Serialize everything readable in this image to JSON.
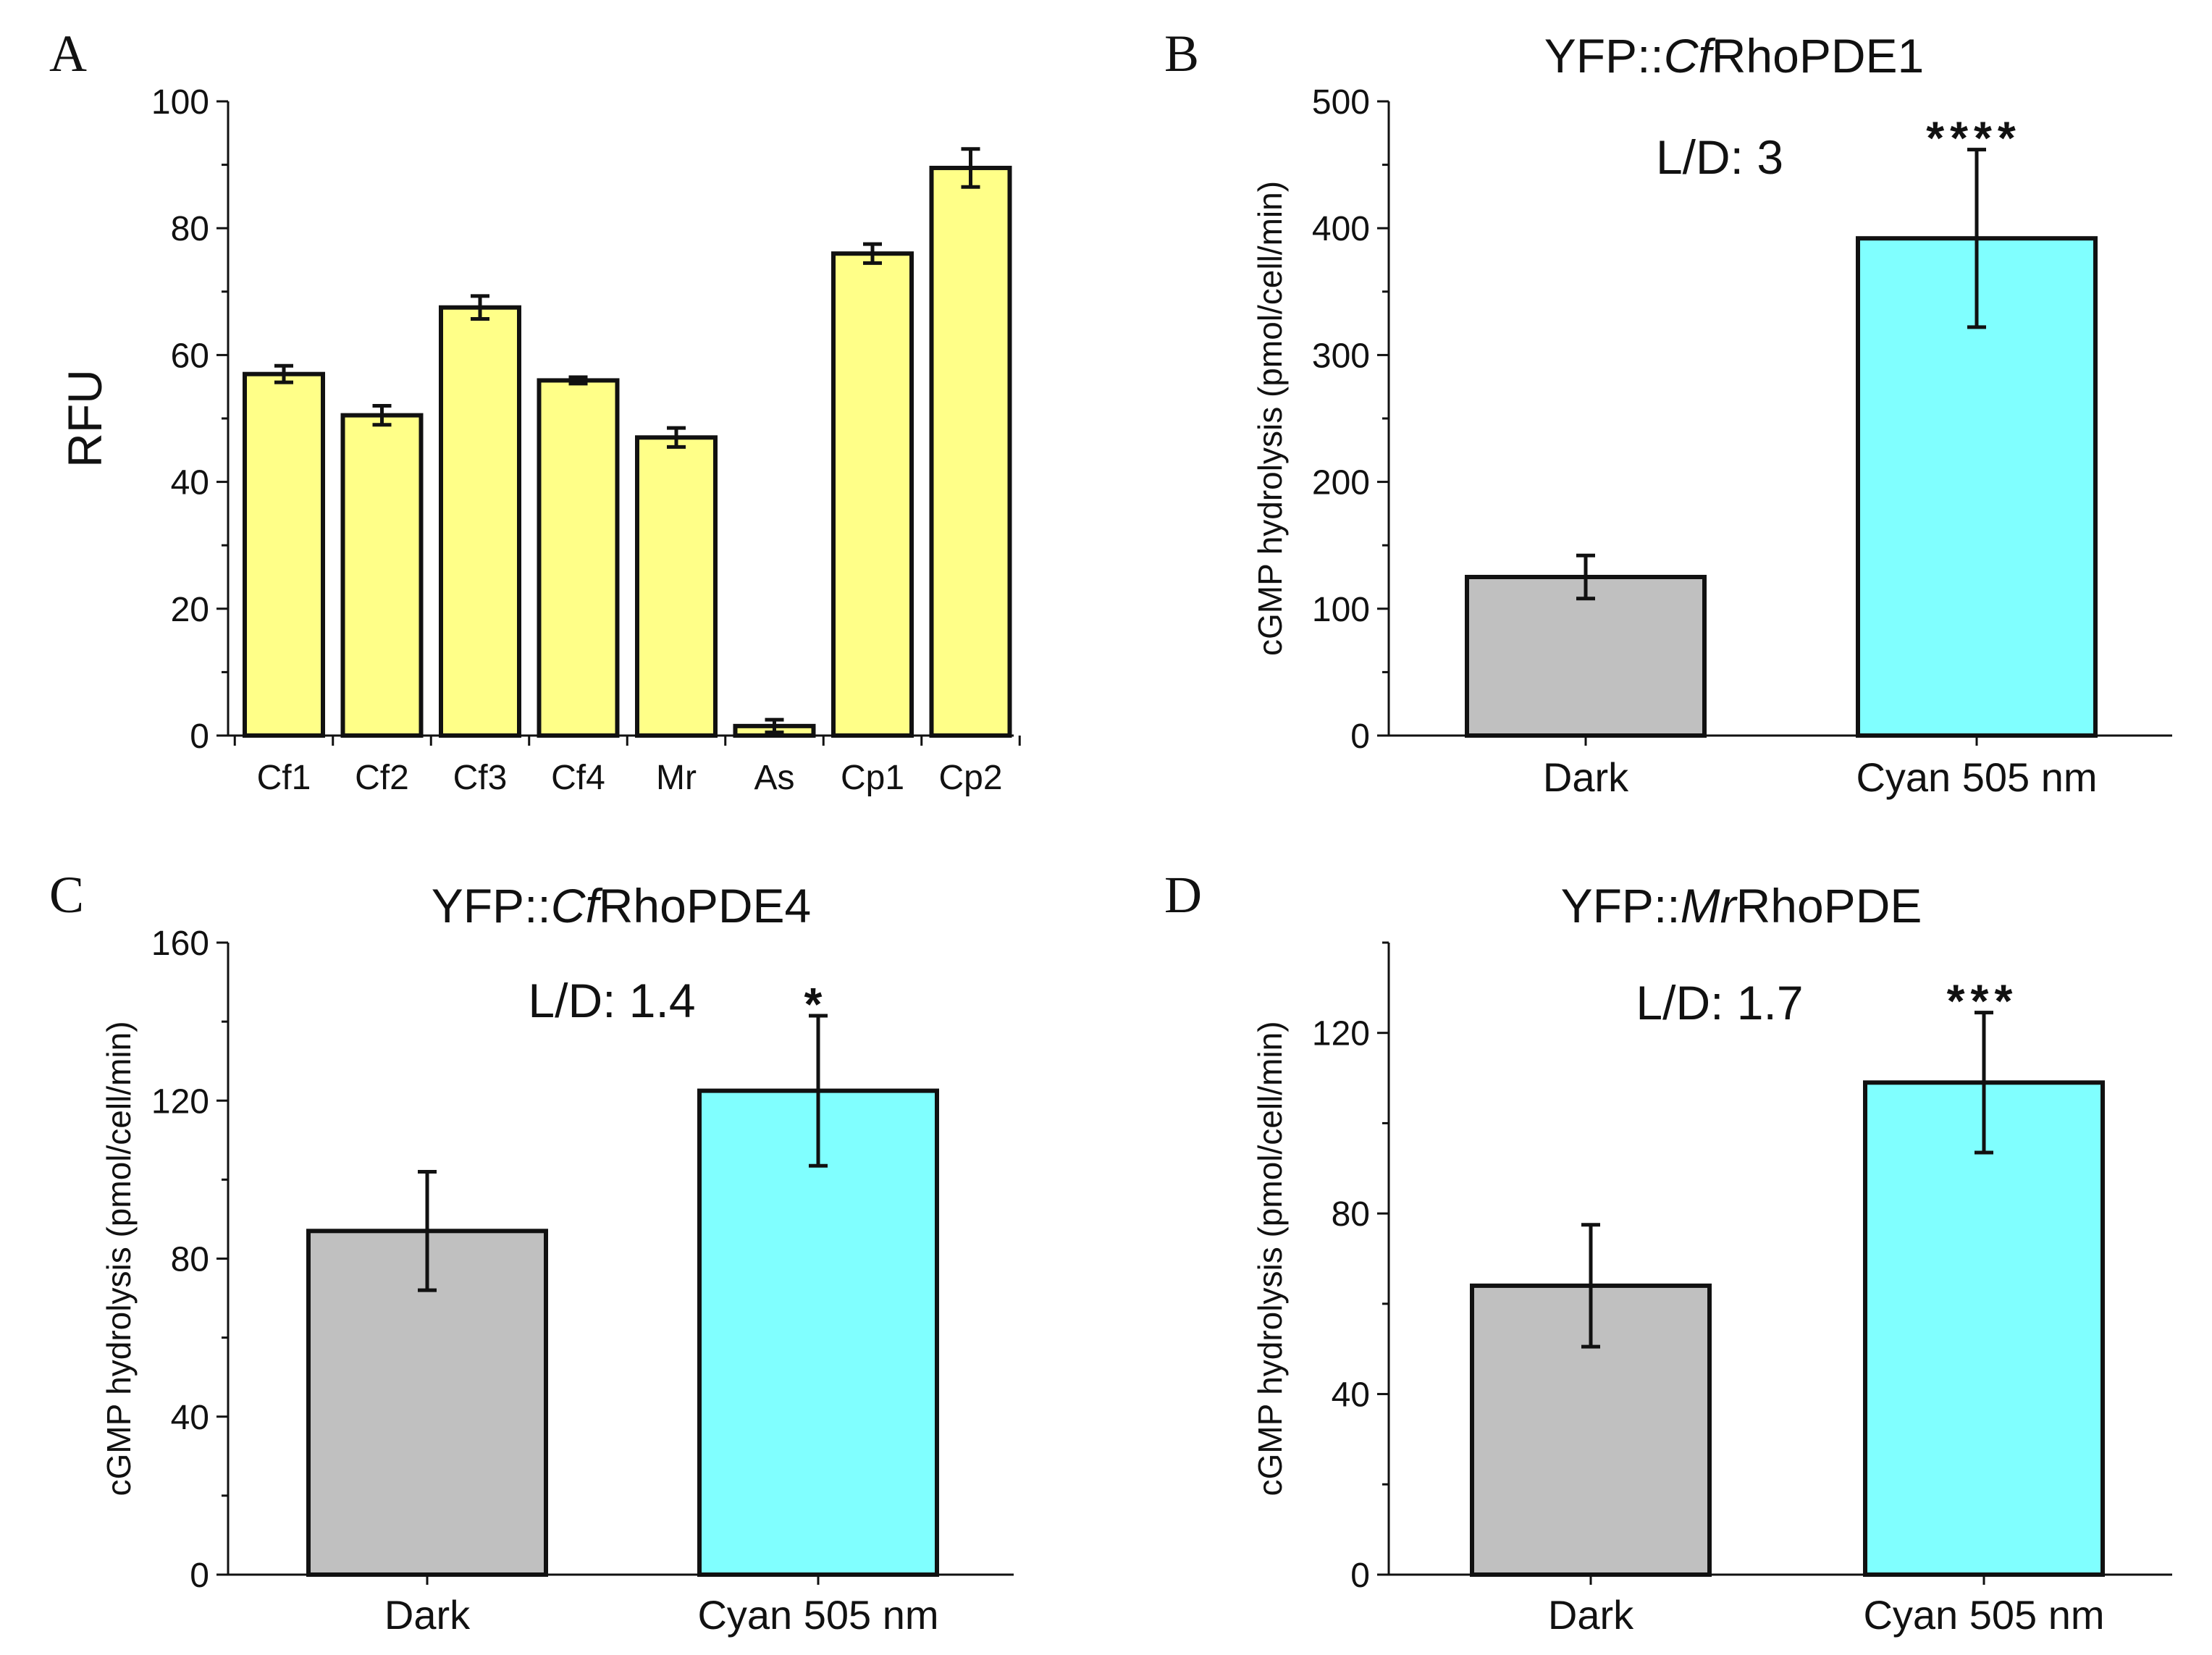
{
  "chart_data": [
    {
      "panel": "A",
      "type": "bar",
      "title": "",
      "xlabel": "",
      "ylabel": "RFU",
      "ylim": [
        0,
        100
      ],
      "yticks": [
        0,
        20,
        40,
        60,
        80,
        100
      ],
      "ytick_labels": [
        "0",
        "20",
        "40",
        "60",
        "80",
        "100"
      ],
      "categories": [
        "Cf1",
        "Cf2",
        "Cf3",
        "Cf4",
        "Mr",
        "As",
        "Cp1",
        "Cp2"
      ],
      "values": [
        57,
        50.5,
        67.5,
        56,
        47,
        1.5,
        76,
        89.5
      ],
      "errors": [
        1.3,
        1.5,
        1.8,
        0.5,
        1.5,
        1.0,
        1.5,
        3.0
      ],
      "bar_color": "#ffff88",
      "grid": false
    },
    {
      "panel": "B",
      "type": "bar",
      "title_prefix": "YFP::",
      "title_italic": "Cf",
      "title_suffix": "RhoPDE1",
      "ylabel": "cGMP hydrolysis (pmol/cell/min)",
      "ylim": [
        0,
        500
      ],
      "yticks": [
        0,
        100,
        200,
        300,
        400,
        500
      ],
      "ytick_labels": [
        "0",
        "100",
        "200",
        "300",
        "400",
        "500"
      ],
      "categories": [
        "Dark",
        "Cyan 505 nm"
      ],
      "values": [
        125,
        392
      ],
      "errors": [
        17,
        70
      ],
      "colors": [
        "#c0c0c0",
        "#80ffff"
      ],
      "ratio_label": "L/D: 3",
      "significance": "****",
      "grid": false
    },
    {
      "panel": "C",
      "type": "bar",
      "title_prefix": "YFP::",
      "title_italic": "Cf",
      "title_suffix": "RhoPDE4",
      "ylabel": "cGMP hydrolysis (pmol/cell/min)",
      "ylim": [
        0,
        160
      ],
      "yticks": [
        0,
        40,
        80,
        120,
        160
      ],
      "ytick_labels": [
        "0",
        "40",
        "80",
        "120",
        "160"
      ],
      "categories": [
        "Dark",
        "Cyan 505 nm"
      ],
      "values": [
        87,
        122.5
      ],
      "errors": [
        15,
        19
      ],
      "colors": [
        "#c0c0c0",
        "#80ffff"
      ],
      "ratio_label": "L/D: 1.4",
      "significance": "*",
      "grid": false
    },
    {
      "panel": "D",
      "type": "bar",
      "title_prefix": "YFP::",
      "title_italic": "Mr",
      "title_suffix": "RhoPDE",
      "ylabel": "cGMP hydrolysis (pmol/cell/min)",
      "ylim": [
        0,
        140
      ],
      "yticks": [
        0,
        40,
        80,
        120
      ],
      "ytick_labels": [
        "0",
        "40",
        "80",
        "120"
      ],
      "categories": [
        "Dark",
        "Cyan 505 nm"
      ],
      "values": [
        64,
        109
      ],
      "errors": [
        13.5,
        15.5
      ],
      "colors": [
        "#c0c0c0",
        "#80ffff"
      ],
      "ratio_label": "L/D: 1.7",
      "significance": "***",
      "grid": false
    }
  ]
}
